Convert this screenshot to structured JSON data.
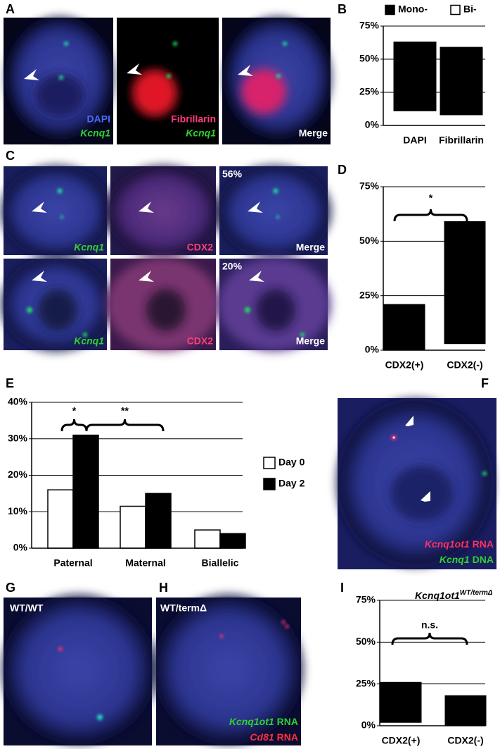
{
  "panel_labels": [
    "A",
    "B",
    "C",
    "D",
    "E",
    "F",
    "G",
    "H",
    "I"
  ],
  "panel_a": {
    "dapi": "DAPI",
    "kcnq1_1": "Kcnq1",
    "fibrillarin": "Fibrillarin",
    "kcnq1_2": "Kcnq1",
    "merge": "Merge"
  },
  "panel_c": {
    "rows": [
      {
        "gene": "Kcnq1",
        "marker": "CDX2",
        "merge": "Merge",
        "percent": "56%"
      },
      {
        "gene": "Kcnq1",
        "marker": "CDX2",
        "merge": "Merge",
        "percent": "20%"
      }
    ]
  },
  "panel_f": {
    "rna_gene": "Kcnq1ot1",
    "rna_suffix": "RNA",
    "dna_gene": "Kcnq1",
    "dna_suffix": "DNA"
  },
  "panel_g": {
    "genotype": "WT/WT"
  },
  "panel_h": {
    "genotype": "WT/termΔ",
    "line1_gene": "Kcnq1ot1",
    "line1_suffix": "RNA",
    "line2_gene": "Cd81",
    "line2_suffix": "RNA"
  },
  "chart_data": [
    {
      "type": "bar",
      "stacked": true,
      "categories": [
        "DAPI",
        "Fibrillarin"
      ],
      "series": [
        {
          "name": "Mono-",
          "color": "#000000",
          "values": [
            52,
            51
          ]
        },
        {
          "name": "Bi-",
          "color": "#ffffff",
          "values": [
            11,
            8
          ]
        }
      ],
      "ylim": [
        0,
        75
      ],
      "yticks": [
        {
          "value": 0,
          "label": "0%"
        },
        {
          "value": 25,
          "label": "25%"
        },
        {
          "value": 50,
          "label": "50%"
        },
        {
          "value": 75,
          "label": "75%"
        }
      ],
      "grid": true,
      "legend": "top",
      "annotations": []
    },
    {
      "type": "bar",
      "stacked": true,
      "categories": [
        "CDX2(+)",
        "CDX2(-)"
      ],
      "series": [
        {
          "color": "#000000",
          "values": [
            21,
            56
          ]
        },
        {
          "color": "#ffffff",
          "values": [
            0,
            3
          ]
        }
      ],
      "ylim": [
        0,
        75
      ],
      "yticks": [
        {
          "value": 0,
          "label": "0%"
        },
        {
          "value": 25,
          "label": "25%"
        },
        {
          "value": 50,
          "label": "50%"
        },
        {
          "value": 75,
          "label": "75%"
        }
      ],
      "grid": true,
      "annotations": [
        {
          "text": "*"
        }
      ]
    },
    {
      "type": "bar",
      "stacked": false,
      "categories": [
        "Paternal",
        "Maternal",
        "Biallelic"
      ],
      "series": [
        {
          "name": "Day 0",
          "color": "#ffffff",
          "values": [
            16,
            11.5,
            5
          ]
        },
        {
          "name": "Day 2",
          "color": "#000000",
          "values": [
            31,
            15,
            4
          ]
        }
      ],
      "ylim": [
        0,
        40
      ],
      "yticks": [
        {
          "value": 0,
          "label": "0%"
        },
        {
          "value": 10,
          "label": "10%"
        },
        {
          "value": 20,
          "label": "20%"
        },
        {
          "value": 30,
          "label": "30%"
        },
        {
          "value": 40,
          "label": "40%"
        }
      ],
      "grid": true,
      "legend": "right",
      "annotations": [
        {
          "text": "*"
        },
        {
          "text": "**"
        }
      ]
    },
    {
      "type": "bar",
      "stacked": true,
      "title": "Kcnq1ot1",
      "title_superscript": "WT/termΔ",
      "categories": [
        "CDX2(+)",
        "CDX2(-)"
      ],
      "series": [
        {
          "color": "#000000",
          "values": [
            24,
            18
          ]
        },
        {
          "color": "#ffffff",
          "values": [
            2,
            0
          ]
        }
      ],
      "ylim": [
        0,
        75
      ],
      "yticks": [
        {
          "value": 0,
          "label": "0%"
        },
        {
          "value": 25,
          "label": "25%"
        },
        {
          "value": 50,
          "label": "50%"
        },
        {
          "value": 75,
          "label": "75%"
        }
      ],
      "grid": true,
      "annotations": [
        {
          "text": "n.s."
        }
      ]
    }
  ]
}
